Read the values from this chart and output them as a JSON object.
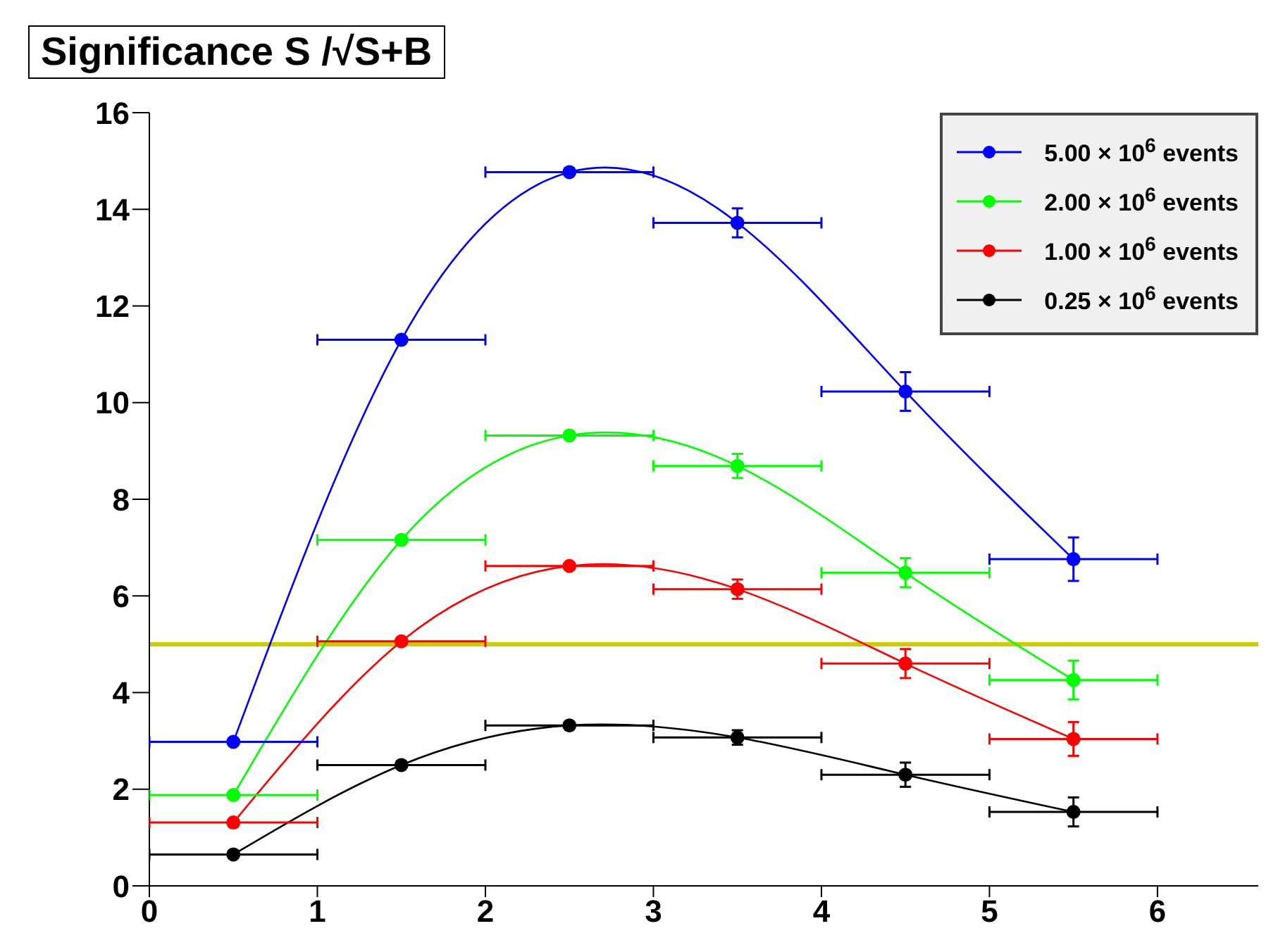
{
  "chart_data": {
    "type": "line",
    "title": "Significance S /√S+B",
    "x": [
      0.5,
      1.5,
      2.5,
      3.5,
      4.5,
      5.5
    ],
    "xlim": [
      0,
      6.6
    ],
    "xticks": [
      0,
      1,
      2,
      3,
      4,
      5,
      6
    ],
    "ylim": [
      0,
      16
    ],
    "yticks": [
      0,
      2,
      4,
      6,
      8,
      10,
      12,
      14,
      16
    ],
    "grid": false,
    "legend": "top right",
    "marker": "circle",
    "line_style": "solid",
    "series": [
      {
        "name": "5.00 × 10$^{6}$ events",
        "color": "#0000ff",
        "values": [
          2.98,
          11.3,
          14.77,
          13.72,
          10.23,
          6.76
        ],
        "errors": [
          null,
          null,
          null,
          0.3,
          0.4,
          0.45
        ],
        "xerrors": [
          0.5,
          0.5,
          0.5,
          0.5,
          0.5,
          0.5
        ]
      },
      {
        "name": "2.00 × 10$^{6}$ events",
        "color": "#00ff00",
        "values": [
          1.88,
          7.16,
          9.32,
          8.69,
          6.48,
          4.26
        ],
        "errors": [
          null,
          null,
          null,
          0.25,
          0.3,
          0.4
        ],
        "xerrors": [
          0.5,
          0.5,
          0.5,
          0.5,
          0.5,
          0.5
        ]
      },
      {
        "name": "1.00 × 10$^{6}$ events",
        "color": "#ff0000",
        "values": [
          1.31,
          5.06,
          6.62,
          6.14,
          4.6,
          3.04
        ],
        "errors": [
          null,
          null,
          null,
          0.2,
          0.3,
          0.35
        ],
        "xerrors": [
          0.5,
          0.5,
          0.5,
          0.5,
          0.5,
          0.5
        ]
      },
      {
        "name": "0.25 × 10$^{6}$ events",
        "color": "#000000",
        "values": [
          0.65,
          2.5,
          3.32,
          3.07,
          2.3,
          1.53
        ],
        "errors": [
          null,
          null,
          null,
          0.15,
          0.25,
          0.3
        ],
        "xerrors": [
          0.5,
          0.5,
          0.5,
          0.5,
          0.5,
          0.5
        ]
      }
    ],
    "ref_lines": [
      {
        "axis": "y",
        "value": 5,
        "color": "#cccc00"
      }
    ]
  }
}
